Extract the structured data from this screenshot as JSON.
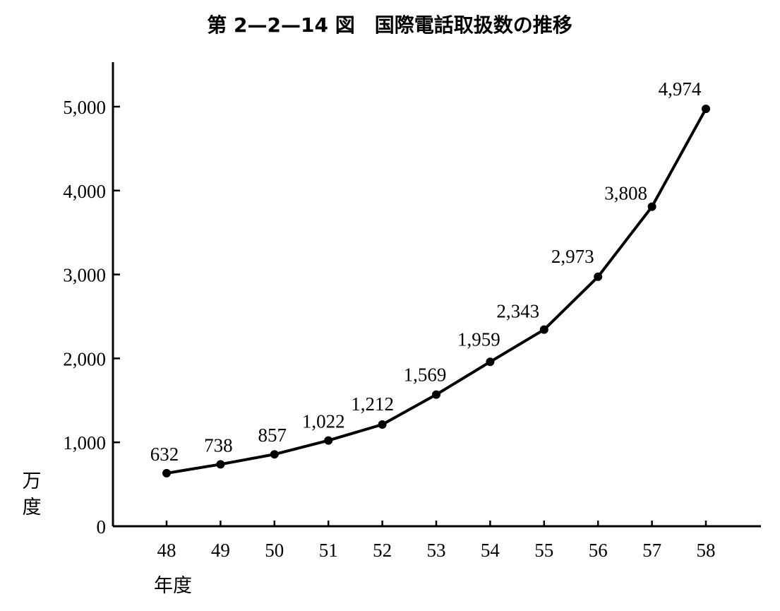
{
  "chart_data": {
    "type": "line",
    "title": "第 2—2—14 図　国際電話取扱数の推移",
    "xlabel": "年度",
    "ylabel": "万度",
    "categories": [
      "48",
      "49",
      "50",
      "51",
      "52",
      "53",
      "54",
      "55",
      "56",
      "57",
      "58"
    ],
    "series": [
      {
        "values": [
          632,
          738,
          857,
          1022,
          1212,
          1569,
          1959,
          2343,
          2973,
          3808,
          4974
        ],
        "labels": [
          "632",
          "738",
          "857",
          "1,022",
          "1,212",
          "1,569",
          "1,959",
          "2,343",
          "2,973",
          "3,808",
          "4,974"
        ]
      }
    ],
    "y_ticks": [
      {
        "value": 0,
        "label": "0"
      },
      {
        "value": 1000,
        "label": "1,000"
      },
      {
        "value": 2000,
        "label": "2,000"
      },
      {
        "value": 3000,
        "label": "3,000"
      },
      {
        "value": 4000,
        "label": "4,000"
      },
      {
        "value": 5000,
        "label": "5,000"
      }
    ],
    "ylim": [
      0,
      5500
    ],
    "grid": false,
    "legend": "none"
  }
}
